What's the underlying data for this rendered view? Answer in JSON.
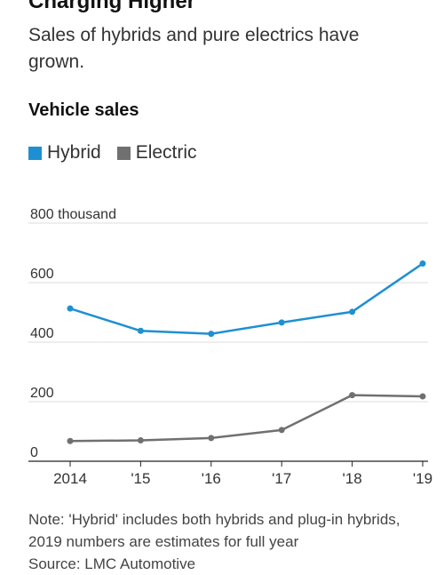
{
  "title": "Charging Higher",
  "subtitle": "Sales of hybrids and pure electrics have grown.",
  "section_title": "Vehicle sales",
  "legend": [
    {
      "label": "Hybrid",
      "color": "#1e90d2"
    },
    {
      "label": "Electric",
      "color": "#707070"
    }
  ],
  "note": "Note: 'Hybrid' includes both hybrids and plug-in hybrids, 2019 numbers are estimates for full year",
  "source": "Source: LMC Automotive",
  "chart_data": {
    "type": "line",
    "x": [
      "2014",
      "'15",
      "'16",
      "'17",
      "'18",
      "'19"
    ],
    "y_ticks": [
      "0",
      "200",
      "400",
      "600",
      "800 thousand"
    ],
    "y_tick_values": [
      0,
      200,
      400,
      600,
      800
    ],
    "ylim": [
      0,
      800
    ],
    "grid": true,
    "legend_position": "top-left",
    "series": [
      {
        "name": "Hybrid",
        "color": "#1e90d2",
        "values": [
          513,
          438,
          428,
          466,
          502,
          664
        ]
      },
      {
        "name": "Electric",
        "color": "#707070",
        "values": [
          68,
          70,
          78,
          105,
          222,
          218
        ]
      }
    ]
  }
}
